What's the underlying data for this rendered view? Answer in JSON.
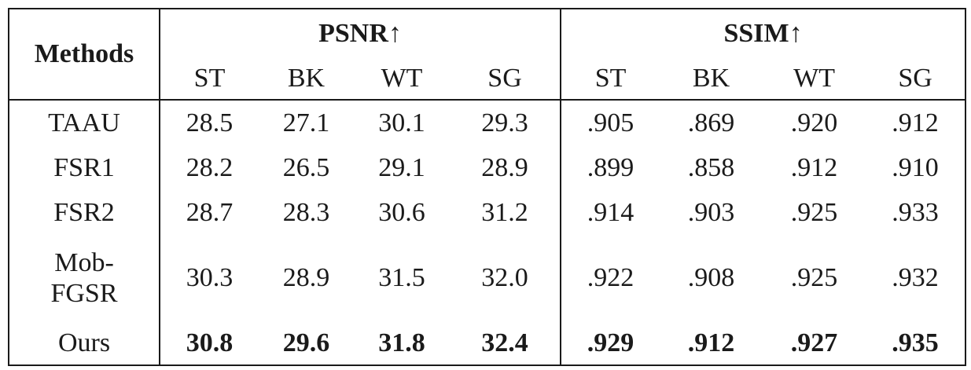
{
  "table": {
    "method_header": "Methods",
    "groups": [
      {
        "label": "PSNR↑",
        "columns": [
          "ST",
          "BK",
          "WT",
          "SG"
        ]
      },
      {
        "label": "SSIM↑",
        "columns": [
          "ST",
          "BK",
          "WT",
          "SG"
        ]
      }
    ],
    "rows": [
      {
        "method": "TAAU",
        "psnr": [
          "28.5",
          "27.1",
          "30.1",
          "29.3"
        ],
        "ssim": [
          ".905",
          ".869",
          ".920",
          ".912"
        ],
        "bold": false
      },
      {
        "method": "FSR1",
        "psnr": [
          "28.2",
          "26.5",
          "29.1",
          "28.9"
        ],
        "ssim": [
          ".899",
          ".858",
          ".912",
          ".910"
        ],
        "bold": false
      },
      {
        "method": "FSR2",
        "psnr": [
          "28.7",
          "28.3",
          "30.6",
          "31.2"
        ],
        "ssim": [
          ".914",
          ".903",
          ".925",
          ".933"
        ],
        "bold": false
      },
      {
        "method": "Mob-FGSR",
        "method_lines": [
          "Mob-",
          "FGSR"
        ],
        "psnr": [
          "30.3",
          "28.9",
          "31.5",
          "32.0"
        ],
        "ssim": [
          ".922",
          ".908",
          ".925",
          ".932"
        ],
        "bold": false
      },
      {
        "method": "Ours",
        "psnr": [
          "30.8",
          "29.6",
          "31.8",
          "32.4"
        ],
        "ssim": [
          ".929",
          ".912",
          ".927",
          ".935"
        ],
        "bold": true
      }
    ]
  }
}
